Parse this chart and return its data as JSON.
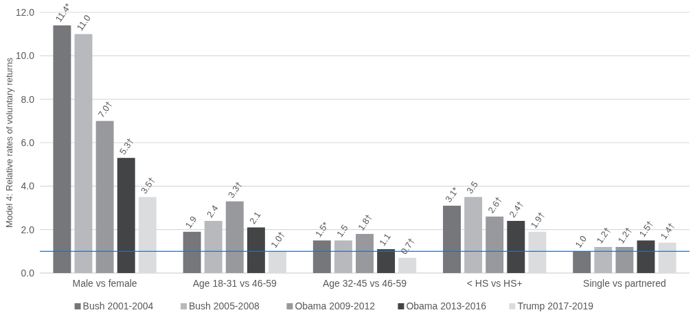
{
  "chart_data": {
    "type": "bar",
    "ylabel": "Model 4: Relative rates of voluntary returns",
    "categories": [
      "Male vs female",
      "Age 18-31 vs 46-59",
      "Age 32-45 vs 46-59",
      "< HS vs HS+",
      "Single vs partnered"
    ],
    "series": [
      {
        "name": "Bush 2001-2004",
        "color": "#76777b",
        "values": [
          11.4,
          1.9,
          1.5,
          3.1,
          1.0
        ],
        "value_labels": [
          "11.4*",
          "1.9",
          "1.5*",
          "3.1*",
          "1.0"
        ]
      },
      {
        "name": "Bush 2005-2008",
        "color": "#b8b9bd",
        "values": [
          11.0,
          2.4,
          1.5,
          3.5,
          1.2
        ],
        "value_labels": [
          "11.0",
          "2.4",
          "1.5",
          "3.5",
          "1.2†"
        ]
      },
      {
        "name": "Obama 2009-2012",
        "color": "#98999d",
        "values": [
          7.0,
          3.3,
          1.8,
          2.6,
          1.2
        ],
        "value_labels": [
          "7.0†",
          "3.3†",
          "1.8†",
          "2.6†",
          "1.2†"
        ]
      },
      {
        "name": "Obama 2013-2016",
        "color": "#434446",
        "values": [
          5.3,
          2.1,
          1.1,
          2.4,
          1.5
        ],
        "value_labels": [
          "5.3†",
          "2.1",
          "1.1",
          "2.4†",
          "1.5†"
        ]
      },
      {
        "name": "Trump 2017-2019",
        "color": "#dbdcde",
        "values": [
          3.5,
          1.0,
          0.7,
          1.9,
          1.4
        ],
        "value_labels": [
          "3.5†",
          "1.0†",
          "0.7†",
          "1.9†",
          "1.4†"
        ]
      }
    ],
    "ylim": [
      0,
      12
    ],
    "yticks": [
      {
        "value": 0,
        "label": "0.0"
      },
      {
        "value": 2,
        "label": "2.0"
      },
      {
        "value": 4,
        "label": "4.0"
      },
      {
        "value": 6,
        "label": "6.0"
      },
      {
        "value": 8,
        "label": "8.0"
      },
      {
        "value": 10,
        "label": "10.0"
      },
      {
        "value": 12,
        "label": "12.0"
      }
    ],
    "ref_lines": [
      {
        "axis": "y",
        "value": 1.0,
        "color": "#2e6db4"
      }
    ],
    "grid": "y",
    "legend": "bottom"
  }
}
